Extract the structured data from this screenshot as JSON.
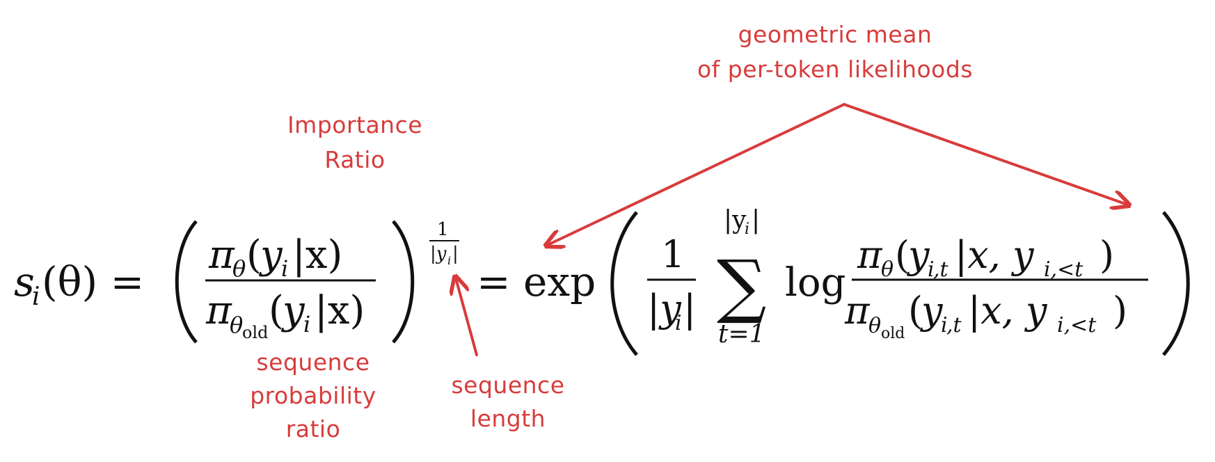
{
  "annotations": {
    "geometric_mean": {
      "line1": "geometric mean",
      "line2": "of per-token likelihoods"
    },
    "importance_ratio": {
      "line1": "Importance",
      "line2": "Ratio"
    },
    "sequence_probability_ratio": {
      "line1": "sequence",
      "line2": "probability",
      "line3": "ratio"
    },
    "sequence_length": {
      "line1": "sequence",
      "line2": "length"
    }
  },
  "colors": {
    "annotation": "#d83b3b",
    "math": "#111111"
  },
  "equation": {
    "s": "s",
    "i_sub": "i",
    "theta_arg": "(θ) =",
    "pi": "π",
    "theta": "θ",
    "y": "y",
    "bar_x": "|x)",
    "theta_old": "θ",
    "old": "old",
    "exp_one": "1",
    "abs_yi": "|y",
    "equals_exp": "= exp",
    "one": "1",
    "sum": "∑",
    "sum_upper": "|y",
    "sum_lower": "t=1",
    "log": "log",
    "num_frac_right": ",t",
    "cond": "|x, y",
    "cond_sub": "i,<t",
    "close": ")"
  }
}
